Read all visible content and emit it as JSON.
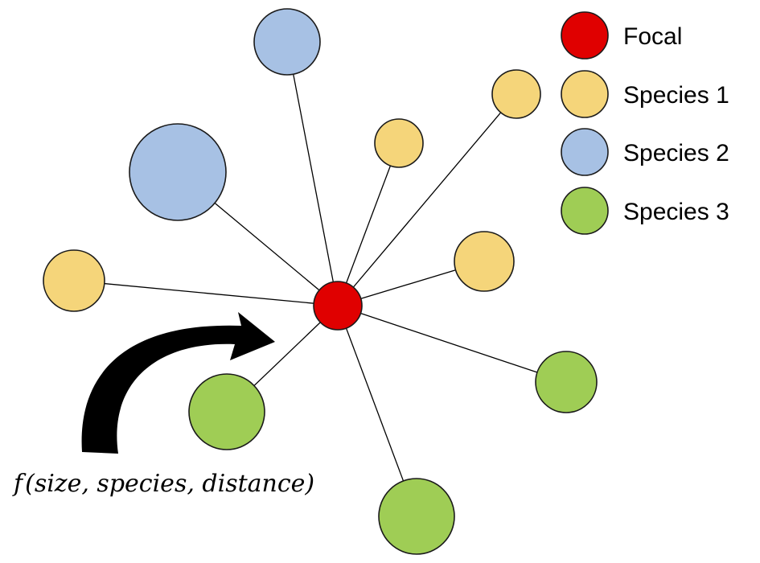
{
  "colors": {
    "focal": "#e00000",
    "species_1": "#f5d57a",
    "species_2": "#a7c1e4",
    "species_3": "#9fcd55"
  },
  "legend": [
    {
      "label": "Focal",
      "color": "#e00000"
    },
    {
      "label": "Species 1",
      "color": "#f5d57a"
    },
    {
      "label": "Species 2",
      "color": "#a7c1e4"
    },
    {
      "label": "Species 3",
      "color": "#9fcd55"
    }
  ],
  "formula": {
    "f": "f",
    "args": "(size, species, distance)"
  },
  "arrow_icon": "curved-arrow-icon"
}
